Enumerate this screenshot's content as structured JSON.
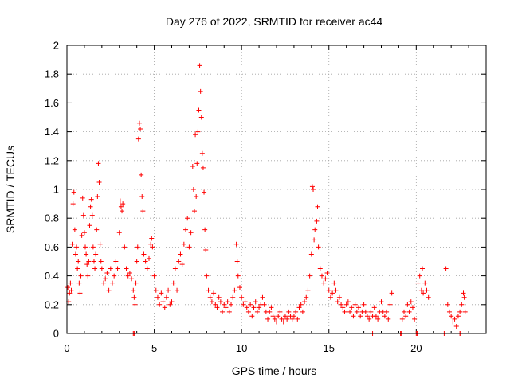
{
  "chart_data": {
    "type": "scatter",
    "title": "Day 276 of 2022, SRMTID for receiver ac44",
    "xlabel": "GPS time / hours",
    "ylabel": "SRMTID / TECUs",
    "xlim": [
      0,
      24
    ],
    "ylim": [
      0,
      2
    ],
    "xticks": [
      0,
      5,
      10,
      15,
      20
    ],
    "yticks": [
      0,
      0.2,
      0.4,
      0.6,
      0.8,
      1,
      1.2,
      1.4,
      1.6,
      1.8,
      2
    ],
    "xtick_labels": [
      "0",
      "5",
      "10",
      "15",
      "20"
    ],
    "ytick_labels": [
      "0",
      "0.2",
      "0.4",
      "0.6",
      "0.8",
      "1",
      "1.2",
      "1.4",
      "1.6",
      "1.8",
      "2"
    ],
    "grid": true,
    "marker": "+",
    "color": "#ff0000",
    "series": [
      {
        "name": "SRMTID",
        "points": [
          [
            0.05,
            0.32
          ],
          [
            0.1,
            0.22
          ],
          [
            0.15,
            0.28
          ],
          [
            0.2,
            0.35
          ],
          [
            0.25,
            0.3
          ],
          [
            0.3,
            0.62
          ],
          [
            0.35,
            0.9
          ],
          [
            0.4,
            0.98
          ],
          [
            0.45,
            0.72
          ],
          [
            0.5,
            0.55
          ],
          [
            0.55,
            0.6
          ],
          [
            0.6,
            0.45
          ],
          [
            0.65,
            0.5
          ],
          [
            0.7,
            0.35
          ],
          [
            0.75,
            0.28
          ],
          [
            0.8,
            0.4
          ],
          [
            0.85,
            0.68
          ],
          [
            0.9,
            0.94
          ],
          [
            0.95,
            0.82
          ],
          [
            1.0,
            0.7
          ],
          [
            1.05,
            0.6
          ],
          [
            1.1,
            0.55
          ],
          [
            1.15,
            0.48
          ],
          [
            1.2,
            0.4
          ],
          [
            1.25,
            0.5
          ],
          [
            1.3,
            0.75
          ],
          [
            1.35,
            0.88
          ],
          [
            1.4,
            0.93
          ],
          [
            1.45,
            0.82
          ],
          [
            1.5,
            0.6
          ],
          [
            1.55,
            0.5
          ],
          [
            1.6,
            0.45
          ],
          [
            1.65,
            0.55
          ],
          [
            1.7,
            0.72
          ],
          [
            1.75,
            0.95
          ],
          [
            1.8,
            1.18
          ],
          [
            1.85,
            1.05
          ],
          [
            1.9,
            0.62
          ],
          [
            1.95,
            0.5
          ],
          [
            2.0,
            0.45
          ],
          [
            2.1,
            0.35
          ],
          [
            2.2,
            0.38
          ],
          [
            2.3,
            0.42
          ],
          [
            2.4,
            0.3
          ],
          [
            2.5,
            0.45
          ],
          [
            2.6,
            0.35
          ],
          [
            2.7,
            0.4
          ],
          [
            2.8,
            0.5
          ],
          [
            2.9,
            0.45
          ],
          [
            3.0,
            0.7
          ],
          [
            3.05,
            0.92
          ],
          [
            3.1,
            0.88
          ],
          [
            3.15,
            0.85
          ],
          [
            3.2,
            0.9
          ],
          [
            3.3,
            0.6
          ],
          [
            3.4,
            0.45
          ],
          [
            3.5,
            0.4
          ],
          [
            3.6,
            0.42
          ],
          [
            3.7,
            0.38
          ],
          [
            3.8,
            0.3
          ],
          [
            3.85,
            0.25
          ],
          [
            3.9,
            0.2
          ],
          [
            3.95,
            0.35
          ],
          [
            4.0,
            0.5
          ],
          [
            4.05,
            0.6
          ],
          [
            4.1,
            1.35
          ],
          [
            4.15,
            1.46
          ],
          [
            4.2,
            1.42
          ],
          [
            4.25,
            1.1
          ],
          [
            4.3,
            0.95
          ],
          [
            4.35,
            0.85
          ],
          [
            4.4,
            0.55
          ],
          [
            4.5,
            0.5
          ],
          [
            4.6,
            0.45
          ],
          [
            4.7,
            0.52
          ],
          [
            4.8,
            0.62
          ],
          [
            4.85,
            0.66
          ],
          [
            4.9,
            0.6
          ],
          [
            5.0,
            0.4
          ],
          [
            5.1,
            0.3
          ],
          [
            5.2,
            0.25
          ],
          [
            5.3,
            0.2
          ],
          [
            5.4,
            0.28
          ],
          [
            5.5,
            0.22
          ],
          [
            5.6,
            0.18
          ],
          [
            5.7,
            0.25
          ],
          [
            5.8,
            0.3
          ],
          [
            5.9,
            0.2
          ],
          [
            6.0,
            0.22
          ],
          [
            6.1,
            0.35
          ],
          [
            6.2,
            0.45
          ],
          [
            6.3,
            0.3
          ],
          [
            6.4,
            0.5
          ],
          [
            6.5,
            0.55
          ],
          [
            6.6,
            0.48
          ],
          [
            6.7,
            0.62
          ],
          [
            6.8,
            0.72
          ],
          [
            6.9,
            0.8
          ],
          [
            7.0,
            0.6
          ],
          [
            7.1,
            0.7
          ],
          [
            7.2,
            1.16
          ],
          [
            7.25,
            1.0
          ],
          [
            7.3,
            0.85
          ],
          [
            7.35,
            1.38
          ],
          [
            7.4,
            0.95
          ],
          [
            7.45,
            1.18
          ],
          [
            7.5,
            1.4
          ],
          [
            7.55,
            1.55
          ],
          [
            7.6,
            1.86
          ],
          [
            7.65,
            1.68
          ],
          [
            7.7,
            1.5
          ],
          [
            7.75,
            1.25
          ],
          [
            7.8,
            1.15
          ],
          [
            7.85,
            0.98
          ],
          [
            7.9,
            0.72
          ],
          [
            7.95,
            0.58
          ],
          [
            8.0,
            0.4
          ],
          [
            8.1,
            0.3
          ],
          [
            8.2,
            0.25
          ],
          [
            8.3,
            0.22
          ],
          [
            8.4,
            0.28
          ],
          [
            8.5,
            0.2
          ],
          [
            8.6,
            0.18
          ],
          [
            8.7,
            0.25
          ],
          [
            8.8,
            0.22
          ],
          [
            8.9,
            0.15
          ],
          [
            9.0,
            0.2
          ],
          [
            9.1,
            0.18
          ],
          [
            9.2,
            0.22
          ],
          [
            9.3,
            0.15
          ],
          [
            9.4,
            0.2
          ],
          [
            9.5,
            0.25
          ],
          [
            9.6,
            0.3
          ],
          [
            9.7,
            0.62
          ],
          [
            9.75,
            0.5
          ],
          [
            9.8,
            0.4
          ],
          [
            9.9,
            0.32
          ],
          [
            10.0,
            0.25
          ],
          [
            10.1,
            0.2
          ],
          [
            10.2,
            0.22
          ],
          [
            10.3,
            0.18
          ],
          [
            10.4,
            0.15
          ],
          [
            10.5,
            0.2
          ],
          [
            10.6,
            0.12
          ],
          [
            10.7,
            0.18
          ],
          [
            10.8,
            0.22
          ],
          [
            10.9,
            0.15
          ],
          [
            11.0,
            0.18
          ],
          [
            11.1,
            0.2
          ],
          [
            11.2,
            0.25
          ],
          [
            11.3,
            0.2
          ],
          [
            11.4,
            0.15
          ],
          [
            11.5,
            0.1
          ],
          [
            11.6,
            0.15
          ],
          [
            11.7,
            0.18
          ],
          [
            11.8,
            0.12
          ],
          [
            11.9,
            0.1
          ],
          [
            12.0,
            0.08
          ],
          [
            12.1,
            0.12
          ],
          [
            12.2,
            0.15
          ],
          [
            12.3,
            0.1
          ],
          [
            12.4,
            0.08
          ],
          [
            12.5,
            0.12
          ],
          [
            12.6,
            0.1
          ],
          [
            12.7,
            0.15
          ],
          [
            12.8,
            0.12
          ],
          [
            12.9,
            0.1
          ],
          [
            13.0,
            0.12
          ],
          [
            13.1,
            0.15
          ],
          [
            13.2,
            0.1
          ],
          [
            13.3,
            0.18
          ],
          [
            13.4,
            0.2
          ],
          [
            13.5,
            0.15
          ],
          [
            13.6,
            0.22
          ],
          [
            13.7,
            0.25
          ],
          [
            13.8,
            0.3
          ],
          [
            13.9,
            0.4
          ],
          [
            14.0,
            0.55
          ],
          [
            14.05,
            1.02
          ],
          [
            14.1,
            1.0
          ],
          [
            14.15,
            0.65
          ],
          [
            14.2,
            0.72
          ],
          [
            14.3,
            0.78
          ],
          [
            14.35,
            0.88
          ],
          [
            14.4,
            0.6
          ],
          [
            14.5,
            0.45
          ],
          [
            14.6,
            0.4
          ],
          [
            14.7,
            0.35
          ],
          [
            14.8,
            0.38
          ],
          [
            14.9,
            0.42
          ],
          [
            15.0,
            0.3
          ],
          [
            15.1,
            0.25
          ],
          [
            15.2,
            0.28
          ],
          [
            15.3,
            0.35
          ],
          [
            15.4,
            0.3
          ],
          [
            15.5,
            0.22
          ],
          [
            15.6,
            0.25
          ],
          [
            15.7,
            0.2
          ],
          [
            15.8,
            0.18
          ],
          [
            15.9,
            0.15
          ],
          [
            16.0,
            0.2
          ],
          [
            16.1,
            0.22
          ],
          [
            16.2,
            0.15
          ],
          [
            16.3,
            0.18
          ],
          [
            16.4,
            0.12
          ],
          [
            16.5,
            0.2
          ],
          [
            16.6,
            0.15
          ],
          [
            16.7,
            0.18
          ],
          [
            16.8,
            0.12
          ],
          [
            16.9,
            0.15
          ],
          [
            17.0,
            0.2
          ],
          [
            17.1,
            0.15
          ],
          [
            17.2,
            0.12
          ],
          [
            17.3,
            0.1
          ],
          [
            17.4,
            0.15
          ],
          [
            17.5,
            0.12
          ],
          [
            17.6,
            0.18
          ],
          [
            17.7,
            0.12
          ],
          [
            17.8,
            0.1
          ],
          [
            17.9,
            0.15
          ],
          [
            18.0,
            0.22
          ],
          [
            18.1,
            0.15
          ],
          [
            18.2,
            0.12
          ],
          [
            18.3,
            0.15
          ],
          [
            18.4,
            0.1
          ],
          [
            18.5,
            0.2
          ],
          [
            18.6,
            0.28
          ],
          [
            19.2,
            0.1
          ],
          [
            19.3,
            0.15
          ],
          [
            19.4,
            0.12
          ],
          [
            19.5,
            0.2
          ],
          [
            19.6,
            0.15
          ],
          [
            19.7,
            0.22
          ],
          [
            19.8,
            0.18
          ],
          [
            19.9,
            0.1
          ],
          [
            20.1,
            0.35
          ],
          [
            20.2,
            0.4
          ],
          [
            20.3,
            0.3
          ],
          [
            20.35,
            0.45
          ],
          [
            20.4,
            0.28
          ],
          [
            20.5,
            0.35
          ],
          [
            20.6,
            0.3
          ],
          [
            20.7,
            0.25
          ],
          [
            21.7,
            0.45
          ],
          [
            21.8,
            0.2
          ],
          [
            21.9,
            0.15
          ],
          [
            22.0,
            0.12
          ],
          [
            22.1,
            0.08
          ],
          [
            22.2,
            0.1
          ],
          [
            22.3,
            0.05
          ],
          [
            22.4,
            0.12
          ],
          [
            22.5,
            0.15
          ],
          [
            22.6,
            0.2
          ],
          [
            22.7,
            0.28
          ],
          [
            22.75,
            0.25
          ],
          [
            22.8,
            0.15
          ],
          [
            3.8,
            0.0
          ],
          [
            3.85,
            0.0
          ],
          [
            17.5,
            0.0
          ],
          [
            19.1,
            0.0
          ],
          [
            19.15,
            0.0
          ],
          [
            20.0,
            0.0
          ],
          [
            20.05,
            0.0
          ],
          [
            21.6,
            0.0
          ],
          [
            21.65,
            0.0
          ],
          [
            22.5,
            0.0
          ],
          [
            22.55,
            0.0
          ]
        ]
      }
    ]
  }
}
